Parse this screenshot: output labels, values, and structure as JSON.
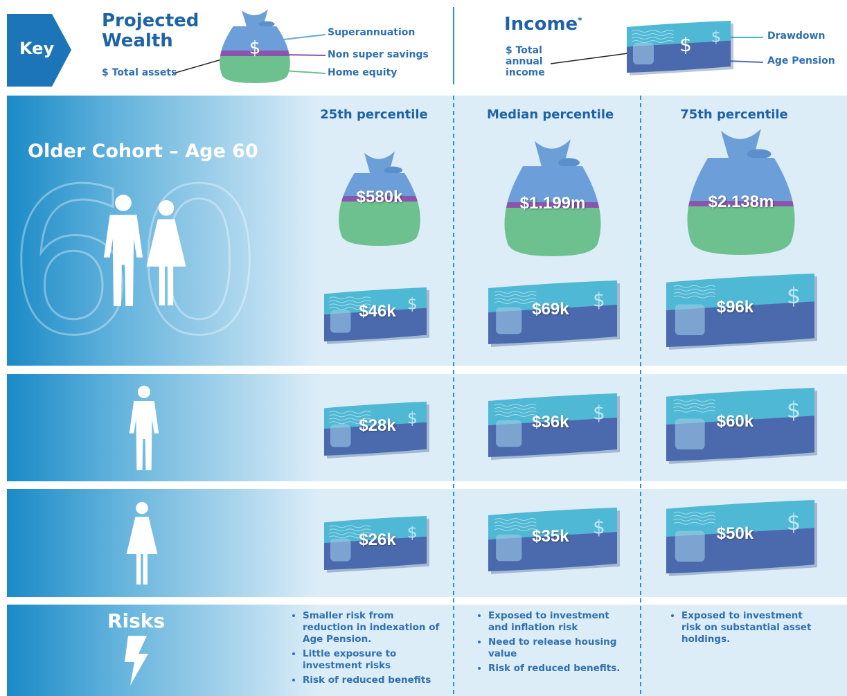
{
  "key": {
    "label": "Key",
    "dollar_sign": "$",
    "wealth": {
      "title": "Projected Wealth",
      "total": "$ Total assets",
      "superannuation": "Superannuation",
      "non_super": "Non super savings",
      "home_equity": "Home equity"
    },
    "income": {
      "title": "Income",
      "footnote_mark": "*",
      "total": "$ Total annual income",
      "drawdown": "Drawdown",
      "age_pension": "Age Pension"
    }
  },
  "columns": [
    "25th percentile",
    "Median percentile",
    "75th percentile"
  ],
  "cohort": "Older Cohort – Age 60",
  "age_numeral": "60",
  "wealth": [
    "$580k",
    "$1.199m",
    "$2.138m"
  ],
  "income_rows": [
    [
      "$46k",
      "$69k",
      "$96k"
    ],
    [
      "$28k",
      "$36k",
      "$60k"
    ],
    [
      "$26k",
      "$35k",
      "$50k"
    ]
  ],
  "risks": {
    "title": "Risks",
    "items": [
      [
        "Smaller risk from reduction in indexation of Age Pension.",
        "Little exposure to investment risks",
        "Risk of reduced benefits"
      ],
      [
        "Exposed to investment and inflation risk",
        "Need to release housing value",
        "Risk of reduced benefits."
      ],
      [
        "Exposed to investment risk on substantial asset holdings."
      ]
    ]
  }
}
